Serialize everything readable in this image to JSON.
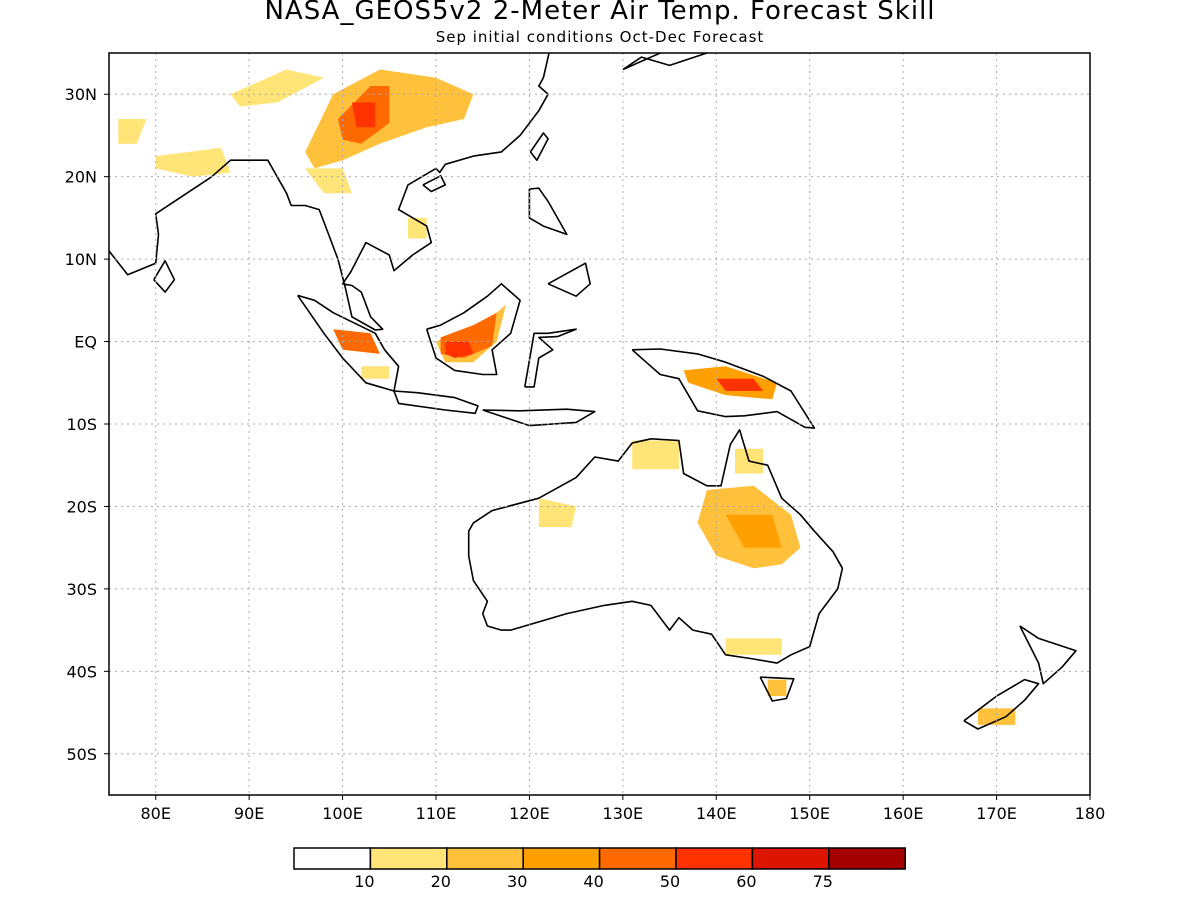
{
  "title": "NASA_GEOS5v2 2-Meter Air Temp. Forecast Skill",
  "subtitle": "Sep initial conditions  Oct-Dec Forecast",
  "axes": {
    "lon_range": [
      75,
      180
    ],
    "lat_range": [
      -55,
      35
    ],
    "lon_ticks": [
      {
        "value": 80,
        "label": "80E"
      },
      {
        "value": 90,
        "label": "90E"
      },
      {
        "value": 100,
        "label": "100E"
      },
      {
        "value": 110,
        "label": "110E"
      },
      {
        "value": 120,
        "label": "120E"
      },
      {
        "value": 130,
        "label": "130E"
      },
      {
        "value": 140,
        "label": "140E"
      },
      {
        "value": 150,
        "label": "150E"
      },
      {
        "value": 160,
        "label": "160E"
      },
      {
        "value": 170,
        "label": "170E"
      },
      {
        "value": 180,
        "label": "180"
      }
    ],
    "lat_ticks": [
      {
        "value": 30,
        "label": "30N"
      },
      {
        "value": 20,
        "label": "20N"
      },
      {
        "value": 10,
        "label": "10N"
      },
      {
        "value": 0,
        "label": "EQ"
      },
      {
        "value": -10,
        "label": "10S"
      },
      {
        "value": -20,
        "label": "20S"
      },
      {
        "value": -30,
        "label": "30S"
      },
      {
        "value": -40,
        "label": "40S"
      },
      {
        "value": -50,
        "label": "50S"
      }
    ],
    "grid": "dotted"
  },
  "colorbar": {
    "colors": [
      "#ffffff",
      "#ffe478",
      "#ffc03c",
      "#ffa000",
      "#ff6a00",
      "#ff3200",
      "#dc1400",
      "#a50000"
    ],
    "labels": [
      "10",
      "20",
      "30",
      "40",
      "50",
      "60",
      "75"
    ]
  },
  "regions": [
    {
      "name": "south-china",
      "level": 2,
      "lons": [
        96,
        99,
        104,
        110,
        114,
        113,
        109,
        104,
        100,
        97
      ],
      "lats": [
        23,
        30,
        33,
        32,
        30,
        27,
        26,
        24,
        22,
        21
      ]
    },
    {
      "name": "sichuan-core",
      "level": 4,
      "lons": [
        99.5,
        103,
        105,
        105,
        102,
        100
      ],
      "lats": [
        27,
        31,
        31,
        26.5,
        24,
        24.5
      ]
    },
    {
      "name": "sichuan-hot",
      "level": 5,
      "lons": [
        101,
        103.5,
        103.5,
        101.5
      ],
      "lats": [
        29,
        29,
        26,
        26
      ]
    },
    {
      "name": "tibet-west",
      "level": 1,
      "lons": [
        88,
        94,
        98,
        93,
        89
      ],
      "lats": [
        30,
        33,
        32,
        29,
        28.5
      ]
    },
    {
      "name": "india-north-patch",
      "level": 1,
      "lons": [
        76,
        79,
        78,
        76
      ],
      "lats": [
        27,
        27,
        24,
        24
      ]
    },
    {
      "name": "india-central",
      "level": 1,
      "lons": [
        80,
        87,
        88,
        84,
        80
      ],
      "lats": [
        22.5,
        23.5,
        20.5,
        20,
        21
      ]
    },
    {
      "name": "indochina-north",
      "level": 1,
      "lons": [
        96,
        100,
        101,
        98
      ],
      "lats": [
        21,
        21,
        18,
        18
      ]
    },
    {
      "name": "vietnam-patch",
      "level": 1,
      "lons": [
        107,
        109,
        109,
        107
      ],
      "lats": [
        15,
        15,
        12.5,
        12.5
      ]
    },
    {
      "name": "sumatra-patch",
      "level": 4,
      "lons": [
        99,
        103,
        104,
        100
      ],
      "lats": [
        1.5,
        1,
        -1.5,
        -1
      ]
    },
    {
      "name": "sumatra-south",
      "level": 1,
      "lons": [
        102,
        105,
        105,
        102
      ],
      "lats": [
        -3,
        -3,
        -4.5,
        -4.5
      ]
    },
    {
      "name": "borneo-outer",
      "level": 2,
      "lons": [
        110,
        114,
        116,
        117.5,
        116.5,
        114,
        111
      ],
      "lats": [
        0,
        2,
        3,
        4.5,
        0,
        -2.5,
        -2.5
      ]
    },
    {
      "name": "borneo-mid",
      "level": 4,
      "lons": [
        110.5,
        114,
        116.5,
        116,
        113,
        110.5
      ],
      "lats": [
        0.5,
        2,
        3.5,
        -0.5,
        -2,
        -1.5
      ]
    },
    {
      "name": "borneo-core",
      "level": 5,
      "lons": [
        111,
        113.5,
        114,
        112,
        111
      ],
      "lats": [
        0,
        0,
        -1.5,
        -2,
        -1.5
      ]
    },
    {
      "name": "new-guinea-outer",
      "level": 3,
      "lons": [
        136.5,
        141,
        146.5,
        146,
        141,
        137
      ],
      "lats": [
        -3.5,
        -3,
        -5,
        -7,
        -6.5,
        -5
      ]
    },
    {
      "name": "new-guinea-core",
      "level": 5,
      "lons": [
        140,
        144,
        145,
        141
      ],
      "lats": [
        -4.5,
        -4.5,
        -6,
        -6
      ]
    },
    {
      "name": "australia-east",
      "level": 2,
      "lons": [
        139,
        144,
        148,
        149,
        147,
        144,
        140,
        138
      ],
      "lats": [
        -18,
        -17.5,
        -21,
        -25,
        -27,
        -27.5,
        -26,
        -22
      ]
    },
    {
      "name": "australia-inner",
      "level": 3,
      "lons": [
        141,
        146,
        147,
        143
      ],
      "lats": [
        -21,
        -21,
        -25,
        -25
      ]
    },
    {
      "name": "australia-north-coast",
      "level": 1,
      "lons": [
        131,
        136,
        136,
        131
      ],
      "lats": [
        -12,
        -12,
        -15.5,
        -15.5
      ]
    },
    {
      "name": "cape-york-patch",
      "level": 1,
      "lons": [
        142,
        145,
        145,
        142
      ],
      "lats": [
        -13,
        -13,
        -16,
        -16
      ]
    },
    {
      "name": "australia-west",
      "level": 1,
      "lons": [
        121,
        125,
        124.5,
        121
      ],
      "lats": [
        -19,
        -20,
        -22.5,
        -22.5
      ]
    },
    {
      "name": "australia-southeast",
      "level": 1,
      "lons": [
        141,
        147,
        147,
        141
      ],
      "lats": [
        -36,
        -36,
        -38,
        -38
      ]
    },
    {
      "name": "tasmania-patch",
      "level": 2,
      "lons": [
        145.5,
        147.5,
        147.5,
        145.5
      ],
      "lats": [
        -41,
        -41,
        -43,
        -43
      ]
    },
    {
      "name": "nz-south-patch",
      "level": 2,
      "lons": [
        168,
        172,
        172,
        168
      ],
      "lats": [
        -44.5,
        -44.5,
        -46.5,
        -46.5
      ]
    }
  ],
  "coastlines": [
    {
      "name": "australia",
      "lons": [
        114,
        116,
        121,
        125,
        127,
        129.5,
        131,
        133,
        136,
        136.5,
        139,
        140.5,
        141.5,
        142.5,
        143.5,
        145.5,
        147,
        149,
        150.5,
        152.5,
        153.5,
        153,
        151,
        150,
        148,
        146.5,
        144,
        141,
        139.5,
        137.5,
        136,
        135,
        133,
        131,
        128,
        124,
        121,
        118,
        117,
        115.5,
        115,
        115.5,
        114,
        113.5,
        113.5,
        114
      ],
      "lats": [
        -22,
        -20.5,
        -19,
        -16.5,
        -14,
        -14.5,
        -12.3,
        -11.8,
        -12,
        -16,
        -17.5,
        -17.5,
        -12.5,
        -10.7,
        -14.5,
        -15,
        -19,
        -21,
        -23,
        -25.5,
        -27.5,
        -30,
        -33,
        -37,
        -38,
        -39,
        -38.5,
        -38,
        -35.5,
        -35,
        -33.5,
        -35,
        -32,
        -31.5,
        -32,
        -33,
        -34,
        -35,
        -35,
        -34.5,
        -33,
        -31.5,
        -29,
        -26,
        -23,
        -22
      ]
    },
    {
      "name": "tasmania",
      "lons": [
        144.7,
        148.3,
        147.5,
        146,
        144.7
      ],
      "lats": [
        -40.7,
        -40.9,
        -43.3,
        -43.6,
        -40.7
      ]
    },
    {
      "name": "new-guinea",
      "lons": [
        131,
        134,
        138,
        141,
        145,
        148,
        150.5,
        149.5,
        146.5,
        143,
        141,
        138,
        136,
        134,
        132.5,
        131
      ],
      "lats": [
        -1,
        -0.9,
        -1.5,
        -2.5,
        -4.2,
        -6,
        -10.5,
        -10.4,
        -8.5,
        -9,
        -9.1,
        -8.4,
        -4.5,
        -4,
        -2.5,
        -1
      ]
    },
    {
      "name": "borneo",
      "lons": [
        109,
        110.5,
        113,
        115.5,
        117,
        119,
        118,
        116,
        116.5,
        115,
        112,
        110,
        109
      ],
      "lats": [
        1.5,
        2,
        3.5,
        5.5,
        7,
        5,
        1,
        -1,
        -4,
        -4,
        -3.5,
        -2,
        1.5
      ]
    },
    {
      "name": "sumatra",
      "lons": [
        95.2,
        97,
        99,
        103.5,
        104.5,
        106,
        105.5,
        102.5,
        100,
        98,
        95.2
      ],
      "lats": [
        5.6,
        5,
        3.5,
        1,
        -1,
        -3,
        -6,
        -5,
        -2,
        1,
        5.6
      ]
    },
    {
      "name": "java",
      "lons": [
        105.5,
        108,
        112,
        114.5,
        114.2,
        111,
        106,
        105.5
      ],
      "lats": [
        -6,
        -6.2,
        -6.8,
        -7.8,
        -8.7,
        -8.3,
        -7.5,
        -6
      ]
    },
    {
      "name": "lesser-sunda",
      "lons": [
        115,
        119,
        124,
        127,
        125,
        120,
        115
      ],
      "lats": [
        -8.3,
        -8.4,
        -8.2,
        -8.5,
        -9.8,
        -10.2,
        -8.3
      ]
    },
    {
      "name": "sulawesi",
      "lons": [
        119.5,
        120.5,
        122,
        125,
        123,
        121,
        122.5,
        121,
        120.5,
        119.5,
        119.5
      ],
      "lats": [
        -5.5,
        1,
        1,
        1.5,
        0.6,
        0.5,
        -1,
        -2,
        -5.5,
        -5.5,
        -5.5
      ]
    },
    {
      "name": "luzon",
      "lons": [
        120,
        121,
        122,
        124,
        121.5,
        120,
        120
      ],
      "lats": [
        18.5,
        18.6,
        17,
        13,
        14,
        15,
        18.5
      ]
    },
    {
      "name": "mindanao",
      "lons": [
        122,
        126,
        126.5,
        125,
        122,
        122
      ],
      "lats": [
        7,
        9.5,
        7,
        5.5,
        7,
        7
      ]
    },
    {
      "name": "taiwan",
      "lons": [
        120.1,
        121.5,
        122,
        120.8,
        120.1
      ],
      "lats": [
        23,
        25.3,
        24.6,
        22,
        23
      ]
    },
    {
      "name": "hainan",
      "lons": [
        108.6,
        110.5,
        111,
        109.5,
        108.6
      ],
      "lats": [
        19,
        20.1,
        19,
        18.2,
        19
      ]
    },
    {
      "name": "sri-lanka",
      "lons": [
        79.8,
        81,
        82,
        81,
        79.8
      ],
      "lats": [
        7.5,
        9.8,
        7.5,
        6,
        7.5
      ]
    },
    {
      "name": "nz-north",
      "lons": [
        172.5,
        174.5,
        178.5,
        177,
        175,
        174.5,
        172.5
      ],
      "lats": [
        -34.5,
        -36,
        -37.5,
        -39.5,
        -41.5,
        -39,
        -34.5
      ]
    },
    {
      "name": "nz-south",
      "lons": [
        166.5,
        170,
        173,
        174.5,
        173,
        171,
        168,
        166.5
      ],
      "lats": [
        -46,
        -43,
        -41,
        -41.5,
        -43.5,
        -45.5,
        -47,
        -46
      ]
    },
    {
      "name": "asia-mainland",
      "lons": [
        75,
        77,
        80,
        80.3,
        80,
        82,
        86,
        88,
        92,
        94,
        94.5,
        96,
        97.5,
        98.5,
        99.5,
        100.3,
        101,
        103.5,
        104.3,
        103,
        102,
        101,
        100,
        100.9,
        102.5,
        105,
        105.5,
        107.5,
        109.5,
        109,
        106,
        107,
        110,
        110.4,
        111,
        114,
        117,
        119,
        121,
        122,
        121,
        121.5,
        122.5,
        120.5,
        118,
        119,
        122,
        121,
        125,
        129,
        129.7,
        131,
        136,
        140,
        141.5,
        142,
        141,
        140,
        141,
        144,
        145
      ],
      "lats": [
        11,
        8.1,
        9.5,
        13,
        15.5,
        17,
        20,
        22,
        22,
        18,
        16.5,
        16.5,
        16,
        13,
        10,
        6.5,
        3,
        1.4,
        1.5,
        3,
        6,
        6.8,
        7,
        8.5,
        12,
        10.5,
        8.6,
        10.5,
        12,
        14,
        16,
        19,
        21,
        20.5,
        21.5,
        22.5,
        23,
        25,
        28,
        30,
        31,
        32,
        37,
        37,
        38,
        39,
        39,
        40.5,
        39,
        35,
        36,
        40,
        42,
        45.2,
        46,
        47,
        48,
        52,
        54,
        55,
        60
      ]
    },
    {
      "name": "japan-honshu",
      "lons": [
        130,
        132,
        135,
        139,
        140,
        141.5,
        141,
        139,
        135,
        130
      ],
      "lats": [
        33,
        34.5,
        33.5,
        35,
        35.5,
        38,
        41,
        38,
        35.5,
        33
      ]
    }
  ],
  "outline_legend_regions": [
    "australia",
    "new-guinea",
    "borneo",
    "sumatra",
    "asia-mainland"
  ]
}
